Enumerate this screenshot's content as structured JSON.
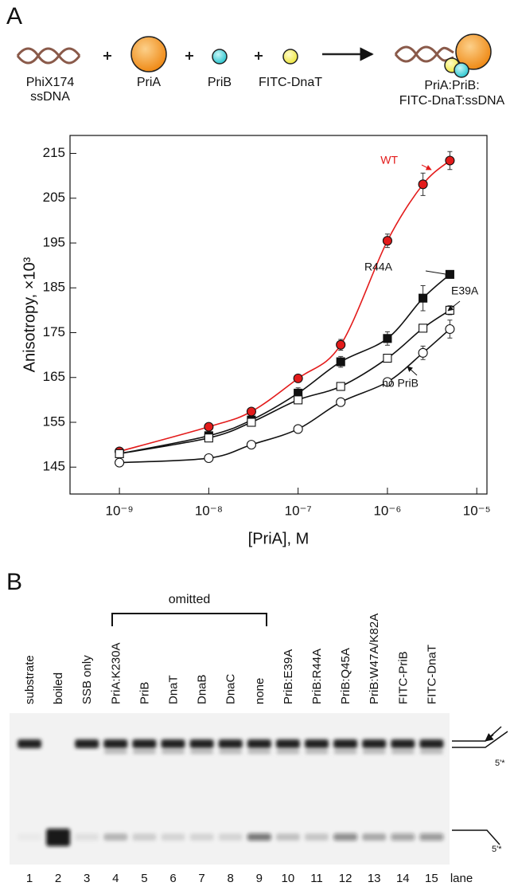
{
  "panel_a": {
    "label": "A",
    "schematic": {
      "items": [
        [
          "PhiX174",
          "ssDNA"
        ],
        [
          "PriA"
        ],
        [
          "PriB"
        ],
        [
          "FITC-DnaT"
        ]
      ],
      "product": [
        "PriA:PriB:",
        "FITC-DnaT:ssDNA"
      ]
    }
  },
  "chart_data": {
    "type": "scatter",
    "xlabel": "[PriA], M",
    "ylabel": "Anisotropy, ×10³",
    "xscale": "log",
    "xlim": [
      2.8e-10,
      1.3e-05
    ],
    "xticks": [
      {
        "value": 1e-09,
        "label": "10⁻⁹"
      },
      {
        "value": 1e-08,
        "label": "10⁻⁸"
      },
      {
        "value": 1e-07,
        "label": "10⁻⁷"
      },
      {
        "value": 1e-06,
        "label": "10⁻⁶"
      },
      {
        "value": 1e-05,
        "label": "10⁻⁵"
      }
    ],
    "ylim": [
      139,
      219
    ],
    "yticks": [
      145,
      155,
      165,
      175,
      185,
      195,
      205,
      215
    ],
    "x": [
      1e-09,
      1e-08,
      3e-08,
      1e-07,
      3e-07,
      1e-06,
      2.5e-06,
      5e-06
    ],
    "series": [
      {
        "name": "WT",
        "marker": "circle",
        "color": "#e31b1b",
        "line_color": "#e31b1b",
        "values": [
          148.5,
          154,
          157.4,
          164.8,
          172.3,
          195.5,
          208.1,
          213.4
        ],
        "errors": [
          0.5,
          0.5,
          0.6,
          0.8,
          1.2,
          1.5,
          2.5,
          2
        ]
      },
      {
        "name": "R44A",
        "marker": "square",
        "color": "#111111",
        "line_color": "#111111",
        "values": [
          148,
          152,
          155.5,
          161.5,
          168.5,
          173.7,
          182.7,
          188
        ],
        "errors": [
          0.5,
          0.5,
          0.6,
          1.2,
          1.2,
          1.5,
          2.8,
          0.8
        ]
      },
      {
        "name": "E39A",
        "marker": "square",
        "color": "#ffffff",
        "line_color": "#111111",
        "values": [
          148,
          151.5,
          155,
          160,
          163,
          169.3,
          176,
          180
        ],
        "errors": [
          0.4,
          0.4,
          0.4,
          0.5,
          0.5,
          0.6,
          0.8,
          1
        ]
      },
      {
        "name": "no PriB",
        "marker": "circle",
        "color": "#ffffff",
        "line_color": "#111111",
        "values": [
          146,
          147,
          150,
          153.5,
          159.5,
          164,
          170.5,
          175.8
        ],
        "errors": [
          0.4,
          0.4,
          0.4,
          0.4,
          0.5,
          0.5,
          1.5,
          2
        ]
      }
    ]
  },
  "panel_b": {
    "label": "B",
    "group_label": "omitted",
    "lanes": [
      "substrate",
      "boiled",
      "SSB only",
      "PriA:K230A",
      "PriB",
      "DnaT",
      "DnaB",
      "DnaC",
      "none",
      "PriB:E39A",
      "PriB:R44A",
      "PriB:Q45A",
      "PriB:W47A/K82A",
      "FITC-PriB",
      "FITC-DnaT"
    ],
    "lane_numbers": [
      1,
      2,
      3,
      4,
      5,
      6,
      7,
      8,
      9,
      10,
      11,
      12,
      13,
      14,
      15
    ],
    "lane_word": "lane",
    "end_label": "5'*"
  }
}
